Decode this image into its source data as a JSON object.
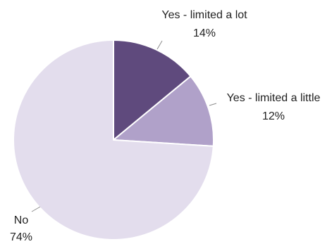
{
  "chart_data": {
    "type": "pie",
    "title": "",
    "start_angle_deg": 0,
    "direction": "clockwise",
    "legend": "none",
    "slices": [
      {
        "label": "Yes - limited a lot",
        "value": 14,
        "value_label": "14%",
        "color": "#5f4a7d"
      },
      {
        "label": "Yes - limited a little",
        "value": 12,
        "value_label": "12%",
        "color": "#b0a1c9"
      },
      {
        "label": "No",
        "value": 74,
        "value_label": "74%",
        "color": "#e3dded"
      }
    ]
  }
}
